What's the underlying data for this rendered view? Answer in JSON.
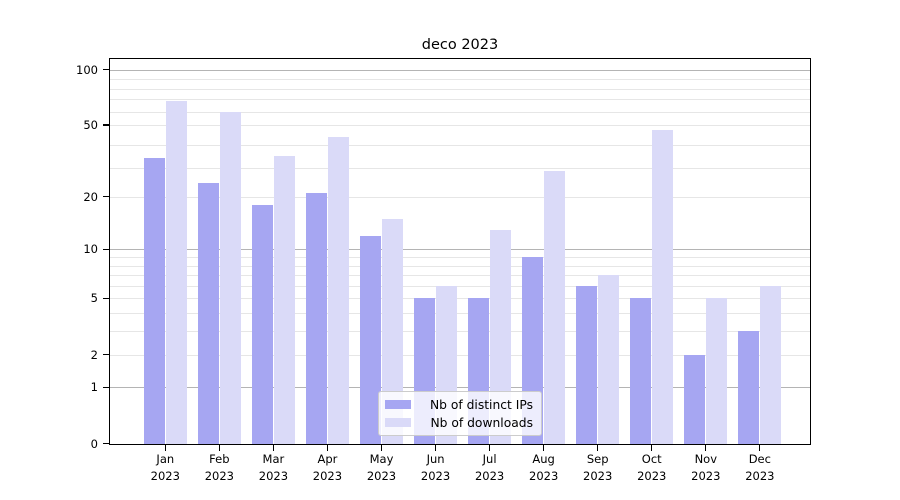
{
  "title": "deco 2023",
  "chart_data": {
    "type": "bar",
    "title": "deco 2023",
    "categories": [
      "Jan",
      "Feb",
      "Mar",
      "Apr",
      "May",
      "Jun",
      "Jul",
      "Aug",
      "Sep",
      "Oct",
      "Nov",
      "Dec"
    ],
    "year": "2023",
    "series": [
      {
        "name": "Nb of distinct IPs",
        "color": "#a6a6f2",
        "values": [
          33,
          24,
          18,
          21,
          12,
          5,
          5,
          9,
          6,
          5,
          2,
          3
        ]
      },
      {
        "name": "Nb of downloads",
        "color": "#dadaf8",
        "values": [
          68,
          59,
          34,
          43,
          15,
          6,
          13,
          28,
          7,
          47,
          5,
          6
        ]
      }
    ],
    "yscale": "log10(1+value), 0 at baseline",
    "ytick_values": [
      100,
      50,
      20,
      10,
      5,
      2,
      1,
      0
    ],
    "grid_decade_values": [
      1,
      10,
      100
    ],
    "grid_minor_values": [
      2,
      3,
      4,
      5,
      6,
      7,
      8,
      9,
      20,
      29,
      39,
      50,
      59,
      69,
      79,
      89
    ],
    "ylim": [
      0,
      115
    ],
    "grid": true,
    "legend_position": "lower center"
  },
  "colors": {
    "ips_bar": "#a6a6f2",
    "downloads_bar": "#dadaf8",
    "grid_major": "#b4b4b4",
    "grid_minor": "#e6e6e6",
    "spine": "#000000",
    "background": "#ffffff",
    "legend_border": "#cccccc",
    "text": "#000000"
  }
}
